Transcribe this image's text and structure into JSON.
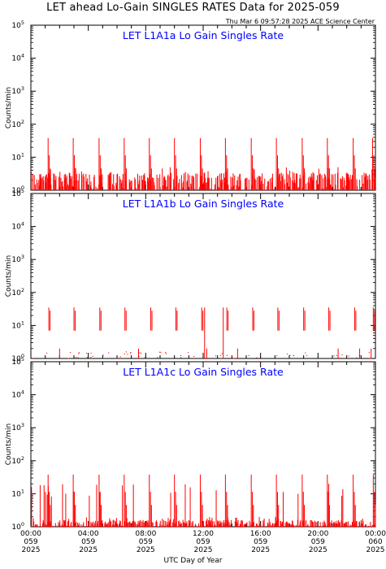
{
  "page": {
    "title": "LET ahead Lo-Gain SINGLES RATES Data for 2025-059",
    "timestamp": "Thu Mar  6 09:57:28 2025 ACE Science Center",
    "xlabel": "UTC Day of Year"
  },
  "colors": {
    "data": "#ff0000",
    "panel_title": "#0000ff",
    "axis": "#000000"
  },
  "chart_data": [
    {
      "type": "line",
      "title": "LET L1A1a Lo Gain Singles Rate",
      "ylabel": "Counts/min",
      "yscale": "log",
      "ylim": [
        1,
        100000
      ],
      "ytick_labels": [
        "10^0",
        "10^1",
        "10^2",
        "10^3",
        "10^4",
        "10^5"
      ],
      "xlim_hours": [
        0,
        24
      ],
      "spike_peak": 38,
      "baseline_range": [
        1,
        5
      ],
      "spike_hours": [
        1.2,
        2.95,
        4.75,
        6.5,
        8.25,
        10.0,
        11.8,
        13.55,
        15.35,
        17.1,
        18.9,
        20.65,
        22.45,
        23.8
      ]
    },
    {
      "type": "line",
      "title": "LET L1A1b Lo Gain Singles Rate",
      "ylabel": "Counts/min",
      "yscale": "log",
      "ylim": [
        1,
        100000
      ],
      "ytick_labels": [
        "10^0",
        "10^1",
        "10^2",
        "10^3",
        "10^4",
        "10^5"
      ],
      "xlim_hours": [
        0,
        24
      ],
      "spike_peak": 35,
      "spike_low": 7,
      "baseline_range": [
        1,
        1.5
      ],
      "spike_hours": [
        1.25,
        3.0,
        4.8,
        6.55,
        8.35,
        10.1,
        11.9,
        13.65,
        15.45,
        17.2,
        19.0,
        20.75,
        22.55,
        23.85
      ]
    },
    {
      "type": "line",
      "title": "LET L1A1c Lo Gain Singles Rate",
      "ylabel": "Counts/min",
      "yscale": "log",
      "ylim": [
        1,
        100000
      ],
      "ytick_labels": [
        "10^0",
        "10^1",
        "10^2",
        "10^3",
        "10^4",
        "10^5"
      ],
      "xlim_hours": [
        0,
        24
      ],
      "spike_peak": 38,
      "baseline_range": [
        1,
        2
      ],
      "spike_hours": [
        1.2,
        2.95,
        4.75,
        6.5,
        8.25,
        10.0,
        11.8,
        13.55,
        15.35,
        17.1,
        18.9,
        20.65,
        22.45,
        23.85
      ],
      "xtick_labels": [
        {
          "time": "00:00",
          "doy": "059",
          "year": "2025"
        },
        {
          "time": "04:00",
          "doy": "059",
          "year": "2025"
        },
        {
          "time": "08:00",
          "doy": "059",
          "year": "2025"
        },
        {
          "time": "12:00",
          "doy": "059",
          "year": "2025"
        },
        {
          "time": "16:00",
          "doy": "059",
          "year": "2025"
        },
        {
          "time": "20:00",
          "doy": "059",
          "year": "2025"
        },
        {
          "time": "00:00",
          "doy": "060",
          "year": "2025"
        }
      ]
    }
  ]
}
